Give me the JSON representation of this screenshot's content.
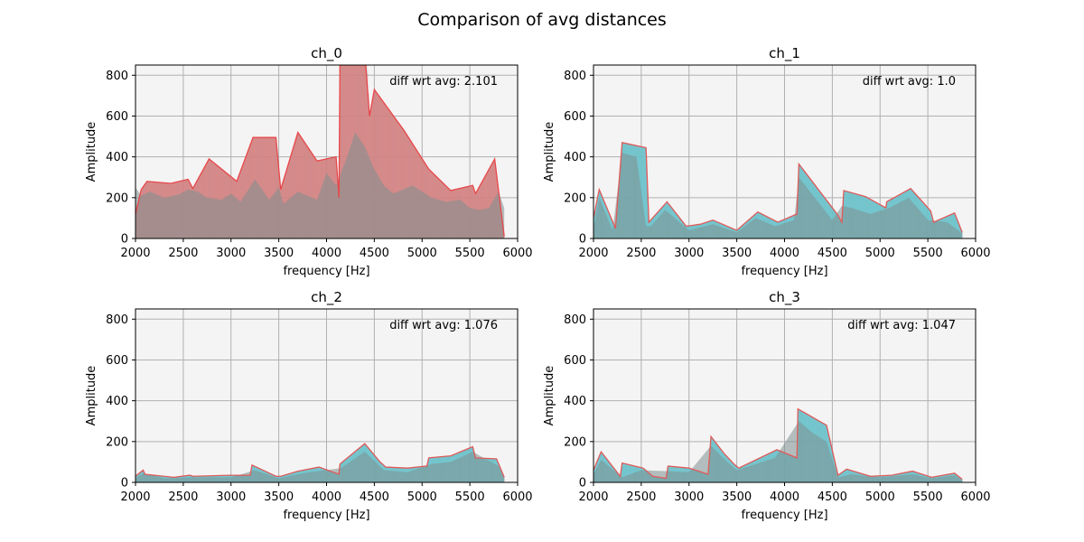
{
  "figure": {
    "title": "Comparison of avg distances"
  },
  "chart_data": [
    {
      "type": "area",
      "title": "ch_0",
      "xlabel": "frequency [Hz]",
      "ylabel": "Amplitude",
      "xlim": [
        2000,
        6000
      ],
      "ylim": [
        0,
        850
      ],
      "xticks": [
        2000,
        2500,
        3000,
        3500,
        4000,
        4500,
        5000,
        5500,
        6000
      ],
      "yticks": [
        0,
        200,
        400,
        600,
        800
      ],
      "grid": true,
      "annotation": "diff wrt avg: 2.101",
      "fill_color": "#f08080",
      "line_color": "#e8474a",
      "envelope": {
        "x": [
          2000,
          2060,
          2120,
          2370,
          2550,
          2600,
          2770,
          3060,
          3230,
          3470,
          3520,
          3700,
          3900,
          4100,
          4130,
          4140,
          4410,
          4450,
          4500,
          4810,
          5070,
          5300,
          5530,
          5560,
          5760,
          5860
        ],
        "y": [
          120,
          240,
          280,
          270,
          290,
          245,
          390,
          280,
          495,
          495,
          240,
          520,
          380,
          400,
          200,
          1050,
          1050,
          600,
          730,
          530,
          340,
          235,
          260,
          220,
          390,
          10
        ]
      },
      "inner": {
        "x": [
          2000,
          2060,
          2150,
          2300,
          2450,
          2550,
          2650,
          2750,
          2900,
          3000,
          3100,
          3250,
          3400,
          3500,
          3550,
          3700,
          3900,
          4000,
          4100,
          4200,
          4300,
          4400,
          4500,
          4600,
          4700,
          4800,
          4900,
          5000,
          5100,
          5250,
          5400,
          5500,
          5600,
          5700,
          5800,
          5860
        ],
        "y": [
          250,
          210,
          230,
          200,
          215,
          240,
          230,
          200,
          190,
          220,
          180,
          290,
          190,
          250,
          170,
          230,
          190,
          320,
          260,
          380,
          520,
          450,
          340,
          260,
          220,
          240,
          260,
          230,
          200,
          180,
          190,
          150,
          140,
          150,
          230,
          150
        ]
      }
    },
    {
      "type": "area",
      "title": "ch_1",
      "xlabel": "frequency [Hz]",
      "ylabel": "Amplitude",
      "xlim": [
        2000,
        6000
      ],
      "ylim": [
        0,
        850
      ],
      "xticks": [
        2000,
        2500,
        3000,
        3500,
        4000,
        4500,
        5000,
        5500,
        6000
      ],
      "yticks": [
        0,
        200,
        400,
        600,
        800
      ],
      "grid": true,
      "annotation": "diff wrt avg: 1.0",
      "fill_color": "#5fd7e3",
      "line_color": "#e05a5a",
      "envelope": {
        "x": [
          2000,
          2060,
          2230,
          2300,
          2550,
          2580,
          2770,
          2970,
          3120,
          3250,
          3500,
          3720,
          3930,
          4130,
          4150,
          4550,
          4600,
          4620,
          4850,
          5060,
          5070,
          5320,
          5530,
          5560,
          5780,
          5860
        ],
        "y": [
          100,
          240,
          50,
          470,
          445,
          80,
          180,
          60,
          70,
          90,
          40,
          130,
          80,
          120,
          365,
          120,
          80,
          235,
          205,
          150,
          180,
          245,
          135,
          80,
          125,
          30
        ]
      },
      "inner": {
        "x": [
          2000,
          2060,
          2200,
          2300,
          2450,
          2550,
          2600,
          2750,
          3000,
          3250,
          3500,
          3700,
          3900,
          4100,
          4150,
          4300,
          4500,
          4600,
          4700,
          4900,
          5100,
          5300,
          5500,
          5700,
          5860
        ],
        "y": [
          50,
          200,
          40,
          420,
          400,
          60,
          60,
          140,
          40,
          70,
          30,
          100,
          60,
          90,
          300,
          210,
          90,
          160,
          150,
          120,
          150,
          200,
          90,
          80,
          25
        ]
      }
    },
    {
      "type": "area",
      "title": "ch_2",
      "xlabel": "frequency [Hz]",
      "ylabel": "Amplitude",
      "xlim": [
        2000,
        6000
      ],
      "ylim": [
        0,
        850
      ],
      "xticks": [
        2000,
        2500,
        3000,
        3500,
        4000,
        4500,
        5000,
        5500,
        6000
      ],
      "yticks": [
        0,
        200,
        400,
        600,
        800
      ],
      "grid": true,
      "annotation": "diff wrt avg: 1.076",
      "fill_color": "#5fd7e3",
      "line_color": "#e05a5a",
      "envelope": {
        "x": [
          2000,
          2080,
          2100,
          2400,
          2570,
          2600,
          3000,
          3200,
          3220,
          3470,
          3520,
          3700,
          3920,
          4130,
          4140,
          4400,
          4560,
          4620,
          4850,
          5050,
          5070,
          5300,
          5530,
          5560,
          5780,
          5860
        ],
        "y": [
          30,
          60,
          40,
          25,
          35,
          30,
          35,
          35,
          85,
          30,
          30,
          55,
          75,
          40,
          90,
          190,
          100,
          75,
          70,
          80,
          120,
          130,
          175,
          120,
          115,
          25
        ]
      },
      "inner": {
        "x": [
          2000,
          2080,
          2300,
          2600,
          3000,
          3250,
          3500,
          3700,
          3900,
          4150,
          4400,
          4600,
          4850,
          5100,
          5300,
          5530,
          5800,
          5860
        ],
        "y": [
          20,
          45,
          20,
          25,
          25,
          60,
          20,
          40,
          55,
          70,
          150,
          60,
          50,
          90,
          100,
          150,
          80,
          20
        ]
      }
    },
    {
      "type": "area",
      "title": "ch_3",
      "xlabel": "frequency [Hz]",
      "ylabel": "Amplitude",
      "xlim": [
        2000,
        6000
      ],
      "ylim": [
        0,
        850
      ],
      "xticks": [
        2000,
        2500,
        3000,
        3500,
        4000,
        4500,
        5000,
        5500,
        6000
      ],
      "yticks": [
        0,
        200,
        400,
        600,
        800
      ],
      "grid": true,
      "annotation": "diff wrt avg: 1.047",
      "fill_color": "#5fd7e3",
      "line_color": "#e05a5a",
      "envelope": {
        "x": [
          2000,
          2080,
          2280,
          2300,
          2520,
          2620,
          2760,
          2780,
          3000,
          3200,
          3230,
          3370,
          3470,
          3520,
          3920,
          4130,
          4140,
          4440,
          4560,
          4650,
          4900,
          5120,
          5340,
          5540,
          5780,
          5860
        ],
        "y": [
          60,
          150,
          30,
          95,
          70,
          30,
          20,
          80,
          70,
          40,
          225,
          140,
          90,
          70,
          160,
          120,
          360,
          280,
          35,
          65,
          30,
          35,
          55,
          25,
          45,
          15
        ]
      },
      "inner": {
        "x": [
          2000,
          2080,
          2300,
          2500,
          2780,
          3000,
          3230,
          3400,
          3500,
          3900,
          4150,
          4300,
          4440,
          4560,
          4700,
          5000,
          5340,
          5540,
          5780,
          5860
        ],
        "y": [
          40,
          110,
          25,
          60,
          55,
          50,
          180,
          100,
          60,
          120,
          300,
          240,
          200,
          25,
          40,
          25,
          40,
          20,
          35,
          10
        ]
      }
    }
  ]
}
